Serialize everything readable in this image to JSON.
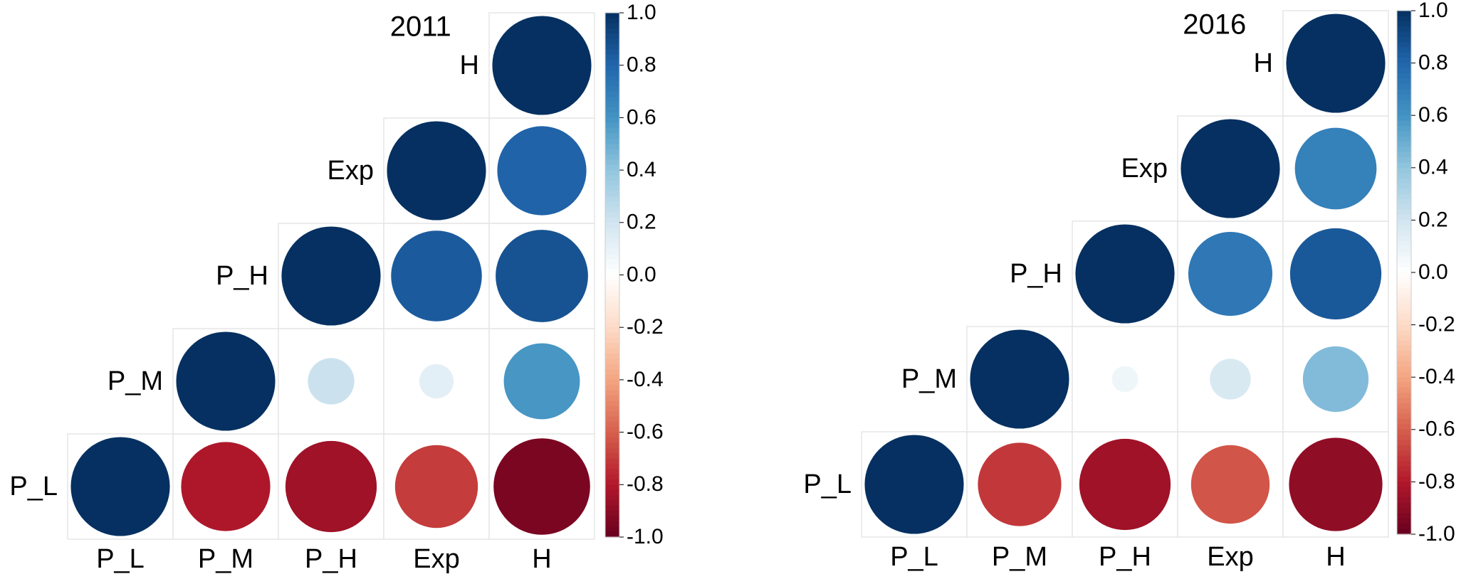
{
  "chart_data": [
    {
      "type": "heatmap",
      "title": "2011",
      "variables": [
        "P_L",
        "P_M",
        "P_H",
        "Exp",
        "H"
      ],
      "matrix": [
        [
          1.0,
          -0.81,
          -0.85,
          -0.7,
          -0.95
        ],
        [
          -0.81,
          1.0,
          0.22,
          0.12,
          0.59
        ],
        [
          -0.85,
          0.22,
          1.0,
          0.84,
          0.87
        ],
        [
          -0.7,
          0.12,
          0.84,
          1.0,
          0.81
        ],
        [
          -0.95,
          0.59,
          0.87,
          0.81,
          1.0
        ]
      ],
      "colorbar": {
        "min": -1.0,
        "max": 1.0,
        "ticks": [
          "-1.0",
          "-0.8",
          "-0.6",
          "-0.4",
          "-0.2",
          "0.0",
          "0.2",
          "0.4",
          "0.6",
          "0.8",
          "1.0"
        ]
      }
    },
    {
      "type": "heatmap",
      "title": "2016",
      "variables": [
        "P_L",
        "P_M",
        "P_H",
        "Exp",
        "H"
      ],
      "matrix": [
        [
          1.0,
          -0.71,
          -0.85,
          -0.63,
          -0.89
        ],
        [
          -0.71,
          1.0,
          0.07,
          0.17,
          0.44
        ],
        [
          -0.85,
          0.07,
          1.0,
          0.72,
          0.85
        ],
        [
          -0.63,
          0.17,
          0.72,
          1.0,
          0.68
        ],
        [
          -0.89,
          0.44,
          0.85,
          0.68,
          1.0
        ]
      ],
      "colorbar": {
        "min": -1.0,
        "max": 1.0,
        "ticks": [
          "-1.0",
          "-0.8",
          "-0.6",
          "-0.4",
          "-0.2",
          "0.0",
          "0.2",
          "0.4",
          "0.6",
          "0.8",
          "1.0"
        ]
      }
    }
  ]
}
